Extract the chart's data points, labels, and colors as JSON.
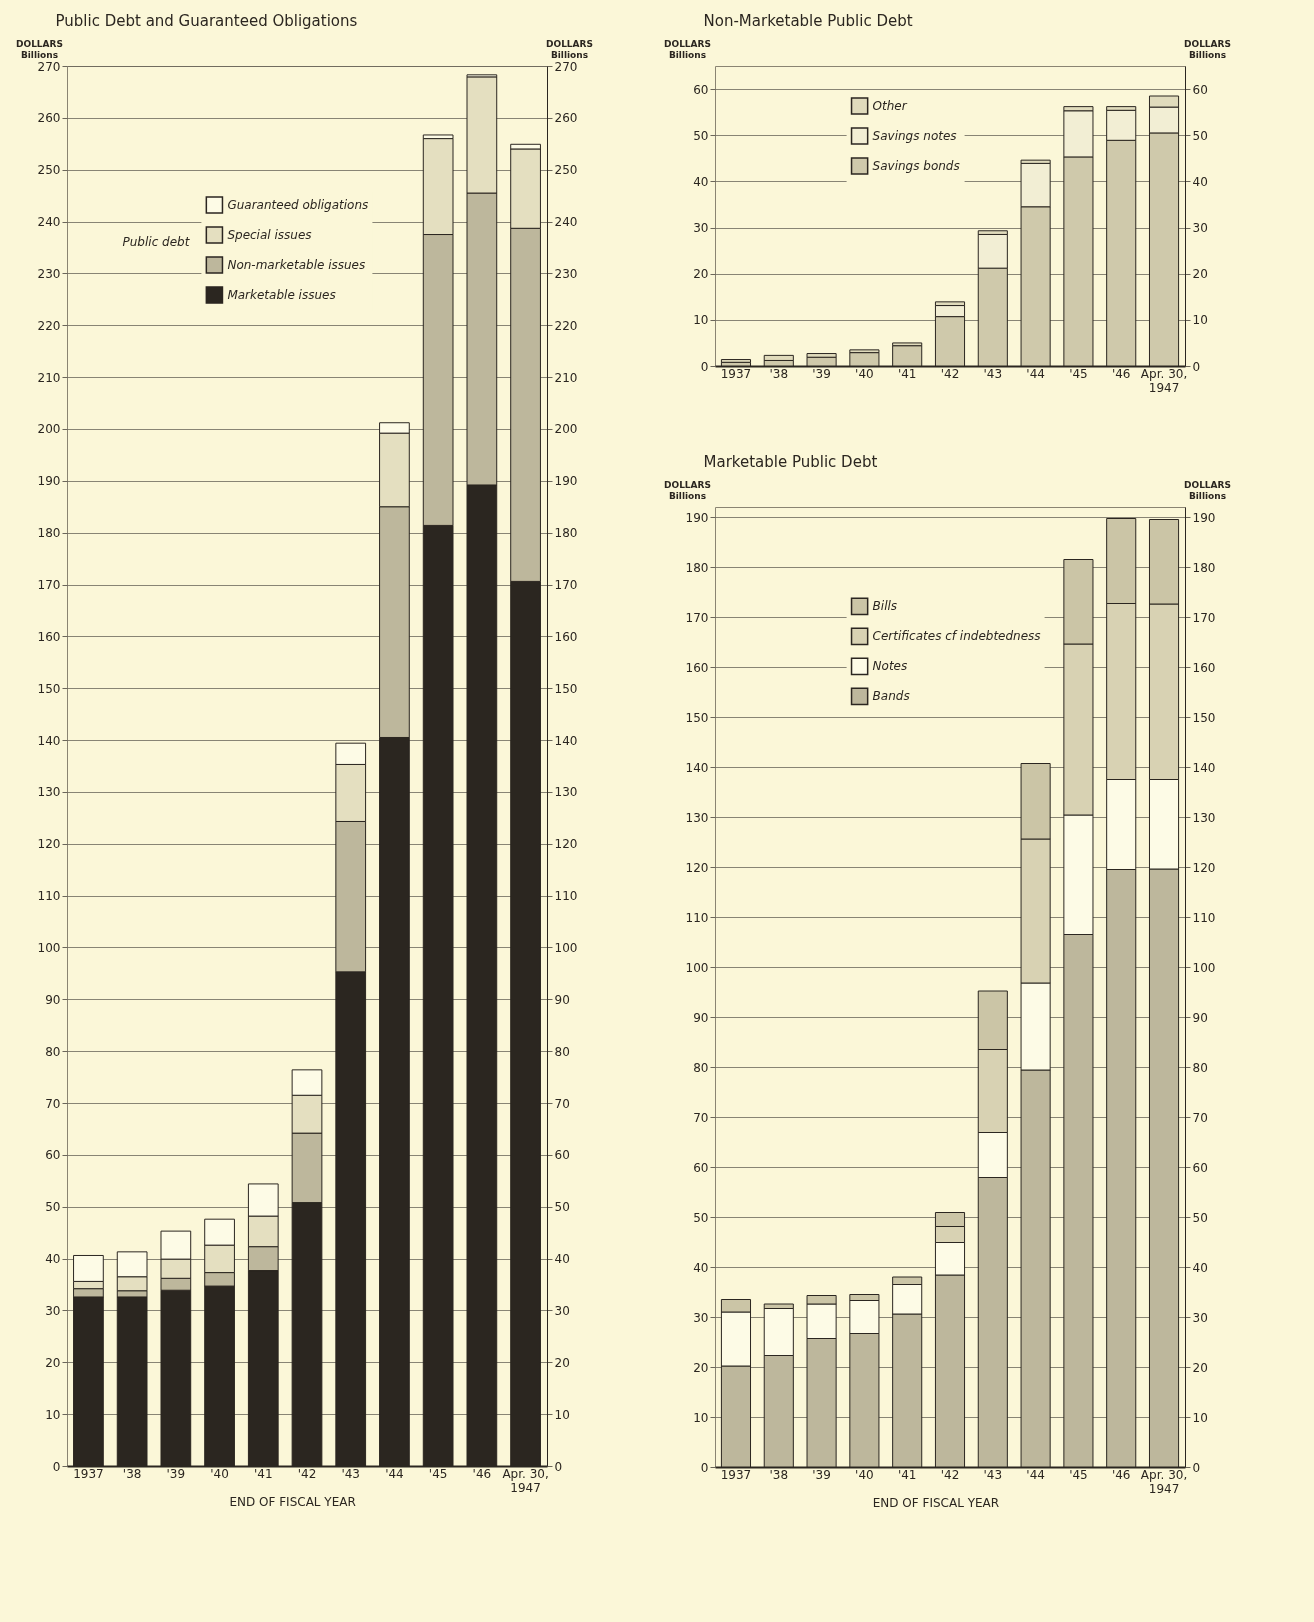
{
  "chart_data": [
    {
      "type": "bar",
      "stacked": true,
      "title": "Public Debt and Guaranteed Obligations",
      "ylabel": "DOLLARS Billions",
      "y2label": "DOLLARS Billions",
      "categories": [
        "1937",
        "'38",
        "'39",
        "'40",
        "'41",
        "'42",
        "'43",
        "'44",
        "'45",
        "'46",
        "Apr. 30, 1947"
      ],
      "series": [
        {
          "name": "Marketable issues",
          "color": "#2b2620",
          "values": [
            32.6,
            32.6,
            33.9,
            34.7,
            37.7,
            50.8,
            95.3,
            140.5,
            181.4,
            189.2,
            170.6
          ]
        },
        {
          "name": "Non-marketable issues",
          "color": "#bdb79c",
          "values": [
            1.6,
            1.2,
            2.3,
            2.6,
            4.6,
            13.4,
            29.0,
            44.5,
            56.1,
            56.3,
            68.1
          ]
        },
        {
          "name": "Special issues",
          "color": "#e4dfc0",
          "values": [
            1.4,
            2.7,
            3.7,
            5.3,
            5.9,
            7.3,
            11.0,
            14.2,
            18.5,
            22.4,
            15.3
          ]
        },
        {
          "name": "Guaranteed obligations",
          "color": "#fdfbe6",
          "values": [
            5.0,
            4.8,
            5.4,
            5.0,
            6.2,
            4.9,
            4.1,
            2.0,
            0.7,
            0.4,
            0.9
          ]
        }
      ],
      "ylim": [
        0,
        270
      ],
      "yticks": [
        0,
        10,
        20,
        30,
        40,
        50,
        60,
        70,
        80,
        90,
        100,
        110,
        120,
        130,
        140,
        150,
        160,
        170,
        180,
        190,
        200,
        210,
        220,
        230,
        240,
        250,
        260,
        270
      ],
      "y2lim": [
        0,
        270
      ],
      "y2ticks": [
        0,
        10,
        20,
        30,
        40,
        50,
        60,
        70,
        80,
        90,
        100,
        110,
        120,
        130,
        140,
        150,
        160,
        170,
        180,
        190,
        200,
        210,
        220,
        230,
        240,
        250,
        260,
        270
      ],
      "grid": "y",
      "legend": "top left",
      "annotations": [
        "Public debt",
        "END OF FISCAL YEAR"
      ]
    },
    {
      "type": "bar",
      "stacked": true,
      "title": "Non-Marketable Public Debt",
      "ylabel": "DOLLARS Billions",
      "y2label": "DOLLARS Billions",
      "categories": [
        "1937",
        "'38",
        "'39",
        "'40",
        "'41",
        "'42",
        "'43",
        "'44",
        "'45",
        "'46",
        "Apr. 30, 1947"
      ],
      "series": [
        {
          "name": "Savings bonds",
          "color": "#cfc9ab",
          "values": [
            0.8,
            1.2,
            1.9,
            2.9,
            4.4,
            10.7,
            21.2,
            34.5,
            45.3,
            48.9,
            50.5
          ]
        },
        {
          "name": "Savings notes",
          "color": "#f2eed4",
          "values": [
            null,
            null,
            null,
            null,
            null,
            2.4,
            7.3,
            9.4,
            10.0,
            6.5,
            5.6
          ]
        },
        {
          "name": "Other",
          "color": "#e0dbbc",
          "values": [
            0.6,
            1.1,
            0.8,
            0.6,
            0.6,
            0.8,
            0.8,
            0.7,
            0.9,
            0.8,
            2.4
          ]
        }
      ],
      "ylim": [
        0,
        65
      ],
      "yticks": [
        0,
        10,
        20,
        30,
        40,
        50,
        60
      ],
      "y2lim": [
        0,
        65
      ],
      "y2ticks": [
        0,
        10,
        20,
        30,
        40,
        50,
        60
      ],
      "grid": "y",
      "legend": "top left"
    },
    {
      "type": "bar",
      "stacked": true,
      "title": "Marketable Public Debt",
      "ylabel": "DOLLARS Billions",
      "y2label": "DOLLARS Billions",
      "categories": [
        "1937",
        "'38",
        "'39",
        "'40",
        "'41",
        "'42",
        "'43",
        "'44",
        "'45",
        "'46",
        "Apr. 30, 1947"
      ],
      "series": [
        {
          "name": "Bands",
          "color": "#bdb79c",
          "values": [
            20.2,
            22.3,
            25.7,
            26.7,
            30.6,
            38.4,
            57.9,
            79.4,
            106.5,
            119.5,
            119.6
          ]
        },
        {
          "name": "Notes",
          "color": "#fdfbe6",
          "values": [
            10.8,
            9.4,
            6.9,
            6.6,
            5.9,
            6.5,
            9.0,
            17.4,
            23.9,
            18.0,
            17.9
          ]
        },
        {
          "name": "Certificates cf indebtedness",
          "color": "#d8d2b3",
          "values": [
            null,
            null,
            null,
            null,
            null,
            3.2,
            16.6,
            28.8,
            34.2,
            35.2,
            35.1
          ]
        },
        {
          "name": "Bills",
          "color": "#cbc5a6",
          "values": [
            2.5,
            0.9,
            1.7,
            1.2,
            1.5,
            2.8,
            11.7,
            15.1,
            16.9,
            17.0,
            16.9
          ]
        }
      ],
      "ylim": [
        0,
        192
      ],
      "yticks": [
        0,
        10,
        20,
        30,
        40,
        50,
        60,
        70,
        80,
        90,
        100,
        110,
        120,
        130,
        140,
        150,
        160,
        170,
        180,
        190
      ],
      "y2lim": [
        0,
        192
      ],
      "y2ticks": [
        0,
        10,
        20,
        30,
        40,
        50,
        60,
        70,
        80,
        90,
        100,
        110,
        120,
        130,
        140,
        150,
        160,
        170,
        180,
        190
      ],
      "grid": "y",
      "legend": "top left",
      "annotations": [
        "END OF FISCAL YEAR"
      ]
    }
  ]
}
